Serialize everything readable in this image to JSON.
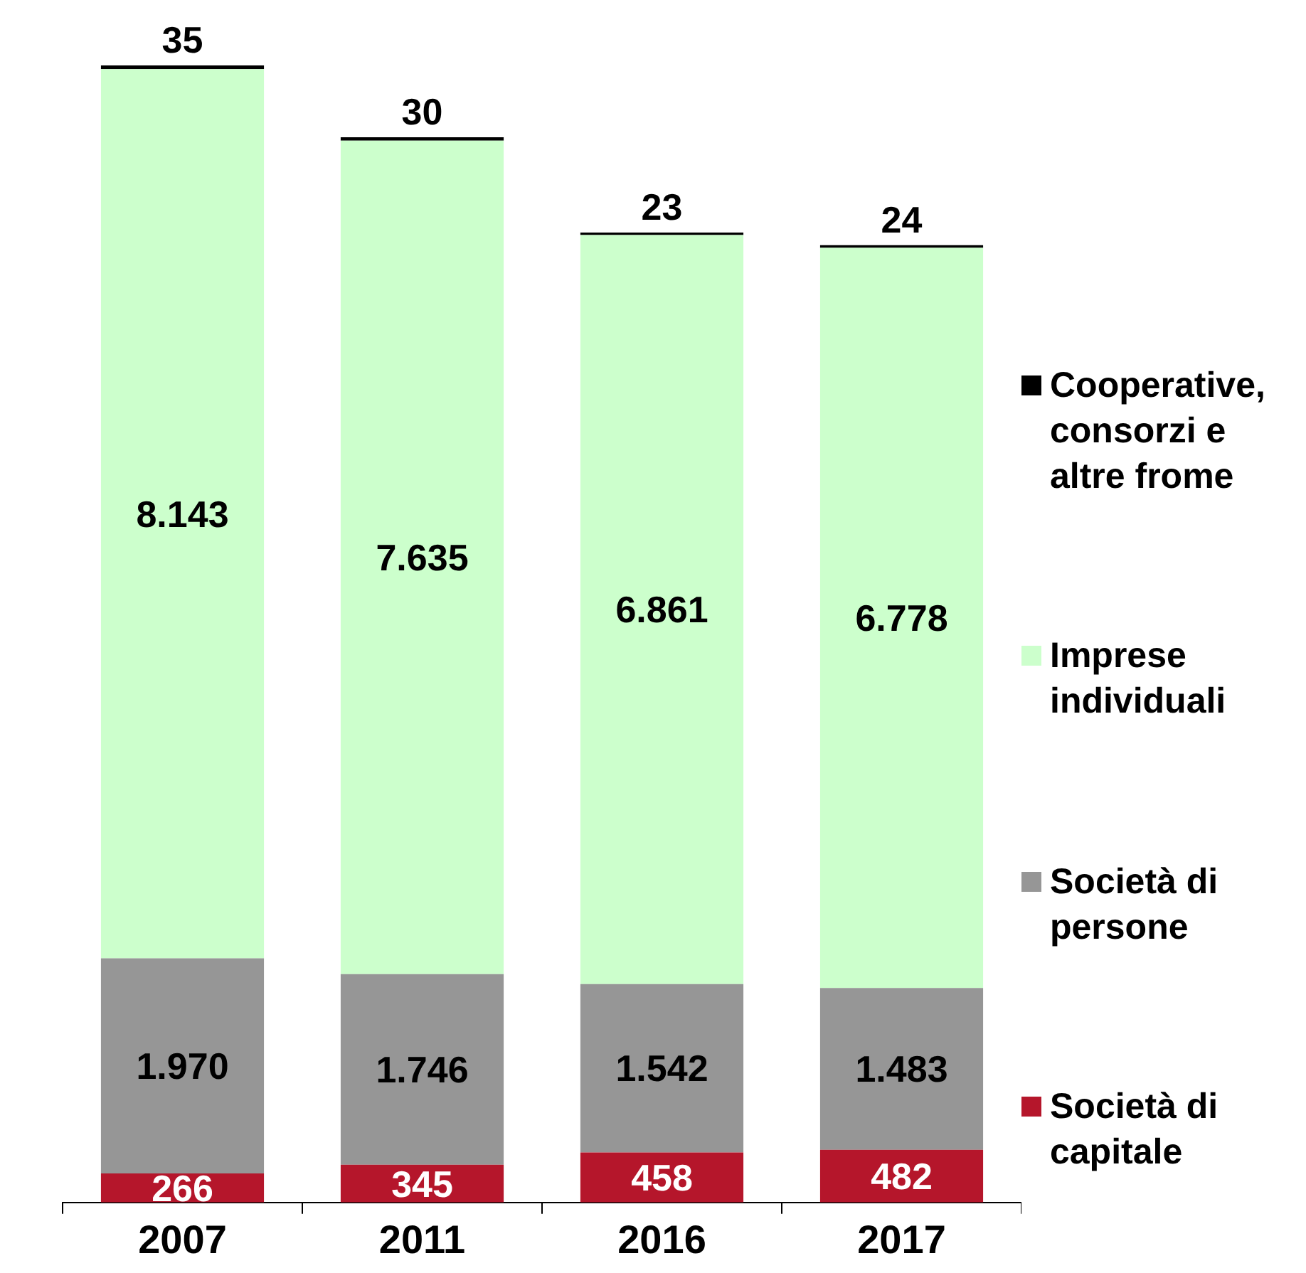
{
  "chart_data": {
    "type": "bar",
    "stacked": true,
    "legend": "right",
    "categories": [
      "2007",
      "2011",
      "2016",
      "2017"
    ],
    "series": [
      {
        "name": "Società di capitale",
        "color": "#b5162b",
        "values": [
          266,
          345,
          458,
          482
        ],
        "value_labels": [
          "266",
          "345",
          "458",
          "482"
        ]
      },
      {
        "name": "Società di persone",
        "color": "#969696",
        "values": [
          1970,
          1746,
          1542,
          1483
        ],
        "value_labels": [
          "1.970",
          "1.746",
          "1.542",
          "1.483"
        ]
      },
      {
        "name": "Imprese individuali",
        "color": "#ccffcc",
        "values": [
          8143,
          7635,
          6861,
          6778
        ],
        "value_labels": [
          "8.143",
          "7.635",
          "6.861",
          "6.778"
        ]
      },
      {
        "name": "Cooperative, consorzi e altre frome",
        "color": "#000000",
        "values": [
          35,
          30,
          23,
          24
        ],
        "value_labels": [
          "35",
          "30",
          "23",
          "24"
        ]
      }
    ]
  }
}
